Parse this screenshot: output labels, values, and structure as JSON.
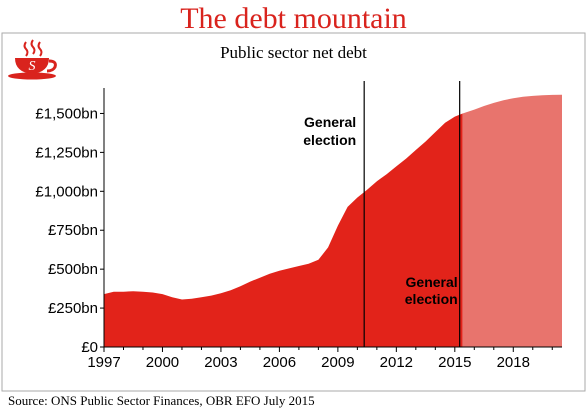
{
  "header": {
    "title": "The debt mountain",
    "subtitle": "Public sector net debt"
  },
  "footer": {
    "source": "Source: ONS Public Sector Finances, OBR EFO July 2015"
  },
  "colors": {
    "title": "#d9231d",
    "actual_area": "#e2231a",
    "forecast_area": "#e8746d",
    "logo": "#d9231d"
  },
  "chart_data": {
    "type": "area",
    "ylim": [
      0,
      1625
    ],
    "xlim": [
      1997,
      2020.5
    ],
    "ylabels": [
      "£0",
      "£250bn",
      "£500bn",
      "£750bn",
      "£1,000bn",
      "£1,250bn",
      "£1,500bn"
    ],
    "yticks": [
      0,
      250,
      500,
      750,
      1000,
      1250,
      1500
    ],
    "xlabels": [
      "1997",
      "2000",
      "2003",
      "2006",
      "2009",
      "2012",
      "2015",
      "2018"
    ],
    "xticks": [
      1997,
      2000,
      2003,
      2006,
      2009,
      2012,
      2015,
      2018
    ],
    "grid": false,
    "series": [
      {
        "kind": "actual",
        "x": [
          1997,
          1997.5,
          1998,
          1998.5,
          1999,
          1999.5,
          2000,
          2000.5,
          2001,
          2001.5,
          2002,
          2002.5,
          2003,
          2003.5,
          2004,
          2004.5,
          2005,
          2005.5,
          2006,
          2006.5,
          2007,
          2007.5,
          2008,
          2008.5,
          2009,
          2009.5,
          2010,
          2010.5,
          2011,
          2011.5,
          2012,
          2012.5,
          2013,
          2013.5,
          2014,
          2014.5,
          2015,
          2015.4
        ],
        "y": [
          340,
          355,
          355,
          358,
          355,
          350,
          340,
          320,
          305,
          310,
          320,
          330,
          345,
          365,
          390,
          420,
          445,
          470,
          490,
          505,
          520,
          535,
          560,
          640,
          780,
          900,
          960,
          1010,
          1065,
          1110,
          1160,
          1210,
          1265,
          1320,
          1380,
          1440,
          1480,
          1500
        ]
      },
      {
        "kind": "forecast",
        "x": [
          2015.4,
          2016,
          2016.5,
          2017,
          2017.5,
          2018,
          2018.5,
          2019,
          2019.5,
          2020,
          2020.5
        ],
        "y": [
          1500,
          1525,
          1548,
          1568,
          1585,
          1598,
          1607,
          1613,
          1617,
          1619,
          1620
        ]
      }
    ],
    "annotations": [
      {
        "text_line1": "General",
        "text_line2": "election",
        "x": 2010.35
      },
      {
        "text_line1": "General",
        "text_line2": "election",
        "x": 2015.25
      }
    ]
  }
}
